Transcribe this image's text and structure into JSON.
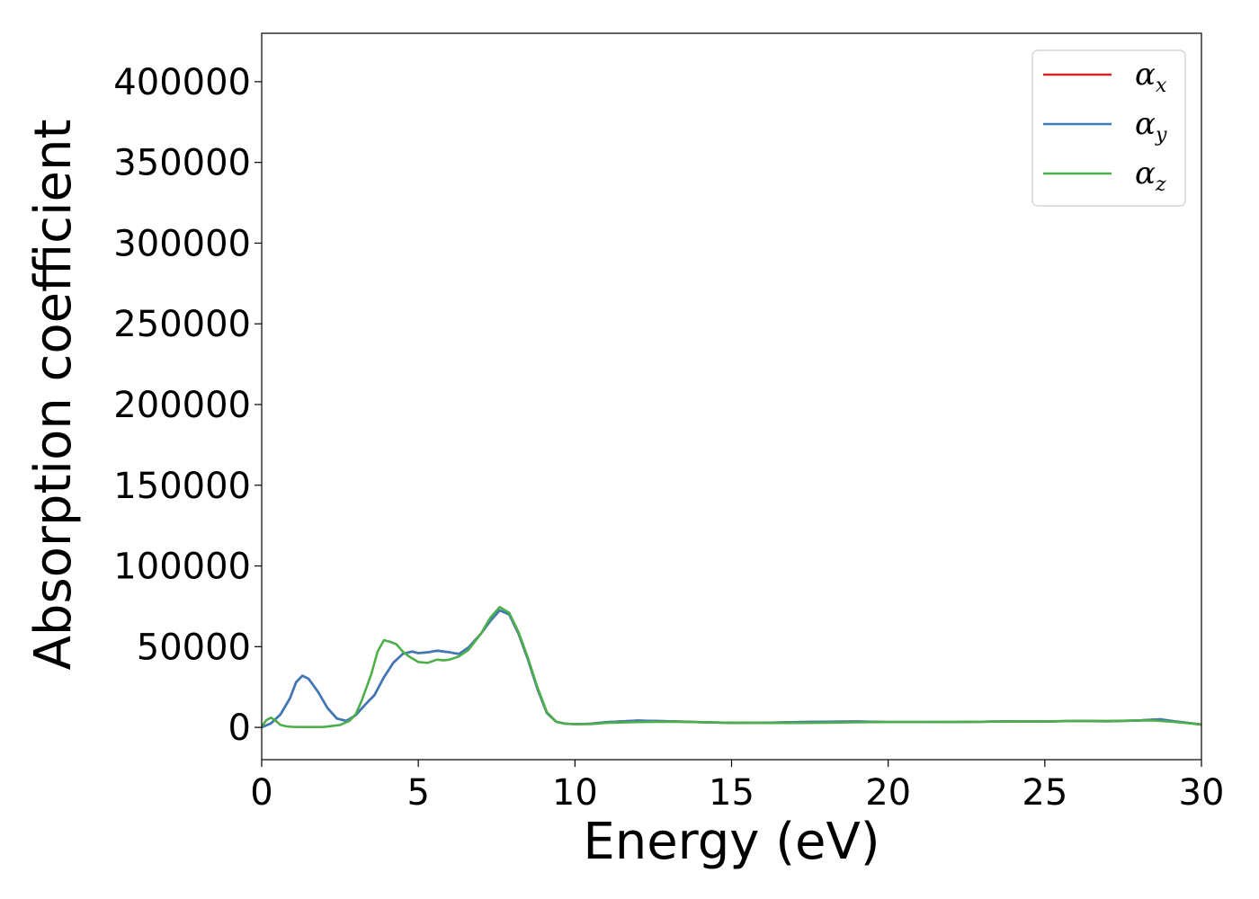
{
  "chart_data": {
    "type": "line",
    "xlabel": "Energy (eV)",
    "ylabel": "Absorption coefficient",
    "xlim": [
      0,
      30
    ],
    "ylim": [
      -20000,
      430000
    ],
    "xticks": [
      0,
      5,
      10,
      15,
      20,
      25,
      30
    ],
    "xtick_labels": [
      "0",
      "5",
      "10",
      "15",
      "20",
      "25",
      "30"
    ],
    "yticks": [
      0,
      50000,
      100000,
      150000,
      200000,
      250000,
      300000,
      350000,
      400000
    ],
    "ytick_labels": [
      "0",
      "50000",
      "100000",
      "150000",
      "200000",
      "250000",
      "300000",
      "350000",
      "400000"
    ],
    "grid": false,
    "legend_position": "top-right",
    "series": [
      {
        "name": "αx",
        "legend_main": "α",
        "legend_sub": "x",
        "color": "#d62728",
        "x": [
          0,
          0.3,
          0.6,
          0.9,
          1.1,
          1.3,
          1.5,
          1.8,
          2.1,
          2.4,
          2.7,
          3.0,
          3.3,
          3.6,
          3.9,
          4.2,
          4.5,
          4.8,
          5.0,
          5.3,
          5.6,
          6.0,
          6.3,
          6.6,
          7.0,
          7.3,
          7.6,
          7.9,
          8.2,
          8.5,
          8.8,
          9.1,
          9.4,
          9.7,
          10.0,
          10.5,
          11.0,
          12.0,
          13.0,
          14.0,
          15.0,
          16.0,
          17.0,
          18.0,
          19.0,
          20.0,
          21.0,
          22.0,
          23.0,
          24.0,
          25.0,
          26.0,
          27.0,
          28.0,
          28.7,
          29.2,
          30.0
        ],
        "values": [
          0,
          2500,
          8000,
          18000,
          28000,
          32000,
          30000,
          22000,
          12000,
          5500,
          4000,
          7500,
          14000,
          20000,
          31000,
          40000,
          45500,
          47000,
          46000,
          46500,
          47500,
          46500,
          45500,
          49500,
          58000,
          66000,
          72500,
          70000,
          58000,
          42000,
          24000,
          9000,
          3500,
          2200,
          2000,
          2200,
          3200,
          4200,
          3800,
          3200,
          2800,
          2800,
          3200,
          3500,
          3600,
          3300,
          3300,
          3300,
          3500,
          3800,
          3600,
          4000,
          3800,
          4300,
          5000,
          3600,
          1800
        ]
      },
      {
        "name": "αy",
        "legend_main": "α",
        "legend_sub": "y",
        "color": "#3a7ab8",
        "x": [
          0,
          0.3,
          0.6,
          0.9,
          1.1,
          1.3,
          1.5,
          1.8,
          2.1,
          2.4,
          2.7,
          3.0,
          3.3,
          3.6,
          3.9,
          4.2,
          4.5,
          4.8,
          5.0,
          5.3,
          5.6,
          6.0,
          6.3,
          6.6,
          7.0,
          7.3,
          7.6,
          7.9,
          8.2,
          8.5,
          8.8,
          9.1,
          9.4,
          9.7,
          10.0,
          10.5,
          11.0,
          12.0,
          13.0,
          14.0,
          15.0,
          16.0,
          17.0,
          18.0,
          19.0,
          20.0,
          21.0,
          22.0,
          23.0,
          24.0,
          25.0,
          26.0,
          27.0,
          28.0,
          28.7,
          29.2,
          30.0
        ],
        "values": [
          0,
          2500,
          8000,
          18000,
          28000,
          32000,
          30000,
          22000,
          12000,
          5500,
          4000,
          7500,
          14000,
          20000,
          31000,
          40000,
          45500,
          47000,
          46000,
          46500,
          47500,
          46500,
          45500,
          49500,
          58000,
          66000,
          72500,
          70000,
          58000,
          42000,
          24000,
          9000,
          3500,
          2200,
          2000,
          2200,
          3200,
          4200,
          3800,
          3200,
          2800,
          2800,
          3200,
          3500,
          3600,
          3300,
          3300,
          3300,
          3500,
          3800,
          3600,
          4000,
          3800,
          4300,
          5000,
          3600,
          1800
        ]
      },
      {
        "name": "αz",
        "legend_main": "α",
        "legend_sub": "z",
        "color": "#4daf4a",
        "x": [
          0,
          0.15,
          0.3,
          0.45,
          0.6,
          0.8,
          1.0,
          1.5,
          2.0,
          2.5,
          2.8,
          3.0,
          3.2,
          3.5,
          3.7,
          3.9,
          4.1,
          4.3,
          4.5,
          4.7,
          5.0,
          5.3,
          5.6,
          5.8,
          6.0,
          6.3,
          6.6,
          7.0,
          7.3,
          7.6,
          7.9,
          8.2,
          8.5,
          8.8,
          9.1,
          9.4,
          9.7,
          10.0,
          10.5,
          11.0,
          12.0,
          13.0,
          14.0,
          15.0,
          16.0,
          17.0,
          18.0,
          19.0,
          20.0,
          21.0,
          22.0,
          23.0,
          24.0,
          25.0,
          26.0,
          27.0,
          28.0,
          28.5,
          29.2,
          30.0
        ],
        "values": [
          500,
          4500,
          6000,
          4000,
          1500,
          600,
          300,
          200,
          300,
          1500,
          4000,
          8000,
          17000,
          33000,
          47000,
          54000,
          53000,
          51500,
          47000,
          44000,
          40500,
          40000,
          42000,
          41500,
          42000,
          44000,
          48000,
          58000,
          68000,
          74500,
          71000,
          59000,
          43000,
          25000,
          9500,
          3500,
          2200,
          2000,
          2000,
          2800,
          3300,
          3500,
          3200,
          2900,
          2700,
          2700,
          2900,
          3100,
          3300,
          3300,
          3400,
          3500,
          3700,
          3700,
          4000,
          4000,
          4300,
          4200,
          3300,
          1700
        ]
      }
    ]
  }
}
